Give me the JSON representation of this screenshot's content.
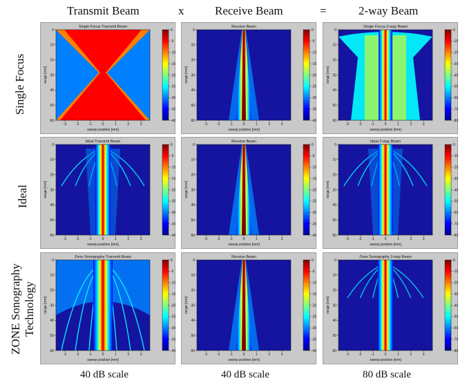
{
  "headers": {
    "col1": "Transmit Beam",
    "op1": "x",
    "col2": "Receive Beam",
    "op2": "=",
    "col3": "2-way Beam"
  },
  "rows": {
    "row1": "Single Focus",
    "row2": "Ideal",
    "row3_line1": "ZONE Sonography",
    "row3_line2": "Technology"
  },
  "footers": {
    "col1": "40 dB scale",
    "col2": "40 dB scale",
    "col3": "80 dB scale"
  },
  "axis": {
    "xlabel": "sweep position [mm]",
    "ylabel": "range [mm]",
    "xticks": [
      "-3",
      "-2",
      "-1",
      "0",
      "1",
      "2",
      "3"
    ],
    "yticks": [
      "0",
      "10",
      "20",
      "30",
      "40",
      "50",
      "60"
    ],
    "cbar40": [
      "0",
      "-5",
      "-10",
      "-15",
      "-20",
      "-25",
      "-30",
      "-35",
      "-40"
    ],
    "cbar80": [
      "0",
      "-10",
      "-20",
      "-30",
      "-40",
      "-50",
      "-60",
      "-70",
      "-80"
    ]
  },
  "panels": [
    {
      "title": "Single Focus Transmit Beam",
      "kind": "sf-tx",
      "scale": "cbar40"
    },
    {
      "title": "Receive Beam",
      "kind": "rx",
      "scale": "cbar40"
    },
    {
      "title": "Single Focus 2-way Beam",
      "kind": "sf-2w",
      "scale": "cbar80"
    },
    {
      "title": "Ideal Transmit Beam",
      "kind": "ideal-tx",
      "scale": "cbar40"
    },
    {
      "title": "Receive Beam",
      "kind": "rx",
      "scale": "cbar40"
    },
    {
      "title": "Ideal 2-way Beam",
      "kind": "ideal-2w",
      "scale": "cbar80"
    },
    {
      "title": "Zone Sonography Transmit Beam",
      "kind": "zone-tx",
      "scale": "cbar40"
    },
    {
      "title": "Receive Beam",
      "kind": "rx",
      "scale": "cbar40"
    },
    {
      "title": "Zone Sonography 2-way Beam",
      "kind": "zone-2w",
      "scale": "cbar80"
    }
  ],
  "colors": {
    "background": "#1414a0",
    "panel": "#c9c9c9",
    "jet": [
      "#00008f",
      "#0000ff",
      "#0080ff",
      "#00ffff",
      "#80ff80",
      "#ffff00",
      "#ff8000",
      "#ff0000",
      "#800000"
    ]
  }
}
